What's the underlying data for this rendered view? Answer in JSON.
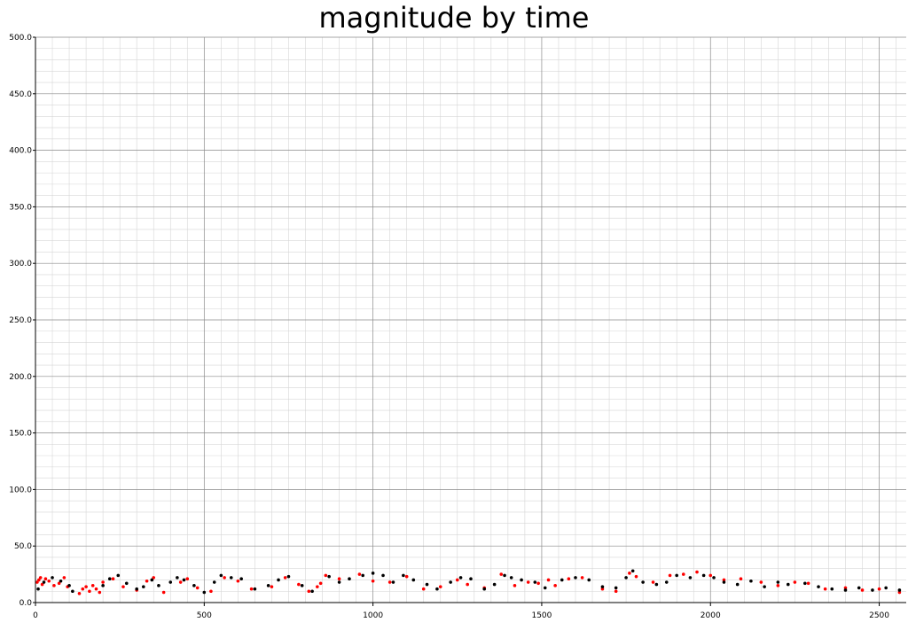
{
  "chart_data": {
    "type": "scatter",
    "title": "magnitude by time",
    "xlabel": "",
    "ylabel": "",
    "xlim": [
      0,
      2580
    ],
    "ylim": [
      0,
      500
    ],
    "x_ticks": [
      0,
      500,
      1000,
      1500,
      2000,
      2500
    ],
    "y_ticks": [
      "0.0",
      "50.0",
      "100.0",
      "150.0",
      "200.0",
      "250.0",
      "300.0",
      "350.0",
      "400.0",
      "450.0",
      "500.0"
    ],
    "grid": true,
    "legend": "none",
    "series": [
      {
        "color": "#ff0000",
        "points": [
          [
            5,
            18
          ],
          [
            10,
            20
          ],
          [
            15,
            22
          ],
          [
            20,
            16
          ],
          [
            30,
            21
          ],
          [
            40,
            19
          ],
          [
            55,
            15
          ],
          [
            70,
            17
          ],
          [
            85,
            22
          ],
          [
            95,
            14
          ],
          [
            130,
            8
          ],
          [
            140,
            12
          ],
          [
            150,
            14
          ],
          [
            160,
            10
          ],
          [
            170,
            15
          ],
          [
            180,
            12
          ],
          [
            190,
            9
          ],
          [
            200,
            18
          ],
          [
            230,
            21
          ],
          [
            260,
            14
          ],
          [
            300,
            11
          ],
          [
            330,
            19
          ],
          [
            350,
            22
          ],
          [
            380,
            9
          ],
          [
            430,
            18
          ],
          [
            450,
            21
          ],
          [
            480,
            13
          ],
          [
            520,
            10
          ],
          [
            560,
            22
          ],
          [
            600,
            19
          ],
          [
            640,
            12
          ],
          [
            700,
            14
          ],
          [
            740,
            22
          ],
          [
            780,
            16
          ],
          [
            810,
            10
          ],
          [
            835,
            14
          ],
          [
            845,
            17
          ],
          [
            860,
            24
          ],
          [
            900,
            21
          ],
          [
            960,
            25
          ],
          [
            1000,
            19
          ],
          [
            1050,
            18
          ],
          [
            1100,
            23
          ],
          [
            1150,
            12
          ],
          [
            1200,
            14
          ],
          [
            1250,
            20
          ],
          [
            1280,
            16
          ],
          [
            1330,
            13
          ],
          [
            1380,
            25
          ],
          [
            1420,
            15
          ],
          [
            1460,
            18
          ],
          [
            1490,
            17
          ],
          [
            1520,
            20
          ],
          [
            1540,
            15
          ],
          [
            1580,
            21
          ],
          [
            1620,
            22
          ],
          [
            1680,
            12
          ],
          [
            1720,
            10
          ],
          [
            1760,
            26
          ],
          [
            1780,
            23
          ],
          [
            1830,
            18
          ],
          [
            1880,
            24
          ],
          [
            1920,
            25
          ],
          [
            1960,
            27
          ],
          [
            2000,
            24
          ],
          [
            2040,
            20
          ],
          [
            2090,
            21
          ],
          [
            2150,
            18
          ],
          [
            2200,
            15
          ],
          [
            2250,
            18
          ],
          [
            2290,
            17
          ],
          [
            2340,
            12
          ],
          [
            2400,
            13
          ],
          [
            2450,
            11
          ],
          [
            2500,
            12
          ],
          [
            2560,
            9
          ]
        ]
      },
      {
        "color": "#000000",
        "points": [
          [
            8,
            12
          ],
          [
            25,
            18
          ],
          [
            50,
            22
          ],
          [
            75,
            19
          ],
          [
            100,
            15
          ],
          [
            110,
            10
          ],
          [
            200,
            15
          ],
          [
            220,
            21
          ],
          [
            245,
            24
          ],
          [
            270,
            17
          ],
          [
            300,
            12
          ],
          [
            320,
            14
          ],
          [
            345,
            20
          ],
          [
            365,
            15
          ],
          [
            400,
            18
          ],
          [
            420,
            22
          ],
          [
            440,
            20
          ],
          [
            470,
            15
          ],
          [
            500,
            9
          ],
          [
            530,
            18
          ],
          [
            550,
            24
          ],
          [
            580,
            22
          ],
          [
            610,
            21
          ],
          [
            650,
            12
          ],
          [
            690,
            15
          ],
          [
            720,
            20
          ],
          [
            750,
            23
          ],
          [
            790,
            15
          ],
          [
            820,
            10
          ],
          [
            870,
            23
          ],
          [
            900,
            18
          ],
          [
            930,
            21
          ],
          [
            970,
            24
          ],
          [
            1000,
            26
          ],
          [
            1030,
            24
          ],
          [
            1060,
            18
          ],
          [
            1090,
            24
          ],
          [
            1120,
            20
          ],
          [
            1160,
            16
          ],
          [
            1190,
            12
          ],
          [
            1230,
            18
          ],
          [
            1260,
            22
          ],
          [
            1290,
            21
          ],
          [
            1330,
            12
          ],
          [
            1360,
            16
          ],
          [
            1390,
            24
          ],
          [
            1410,
            22
          ],
          [
            1440,
            20
          ],
          [
            1480,
            18
          ],
          [
            1510,
            13
          ],
          [
            1560,
            20
          ],
          [
            1600,
            22
          ],
          [
            1640,
            20
          ],
          [
            1680,
            14
          ],
          [
            1720,
            13
          ],
          [
            1750,
            22
          ],
          [
            1770,
            28
          ],
          [
            1800,
            18
          ],
          [
            1840,
            16
          ],
          [
            1870,
            18
          ],
          [
            1900,
            24
          ],
          [
            1940,
            22
          ],
          [
            1980,
            24
          ],
          [
            2010,
            22
          ],
          [
            2040,
            18
          ],
          [
            2080,
            16
          ],
          [
            2120,
            19
          ],
          [
            2160,
            14
          ],
          [
            2200,
            18
          ],
          [
            2230,
            16
          ],
          [
            2280,
            17
          ],
          [
            2320,
            14
          ],
          [
            2360,
            12
          ],
          [
            2400,
            11
          ],
          [
            2440,
            13
          ],
          [
            2480,
            11
          ],
          [
            2520,
            13
          ],
          [
            2560,
            11
          ]
        ]
      }
    ]
  }
}
